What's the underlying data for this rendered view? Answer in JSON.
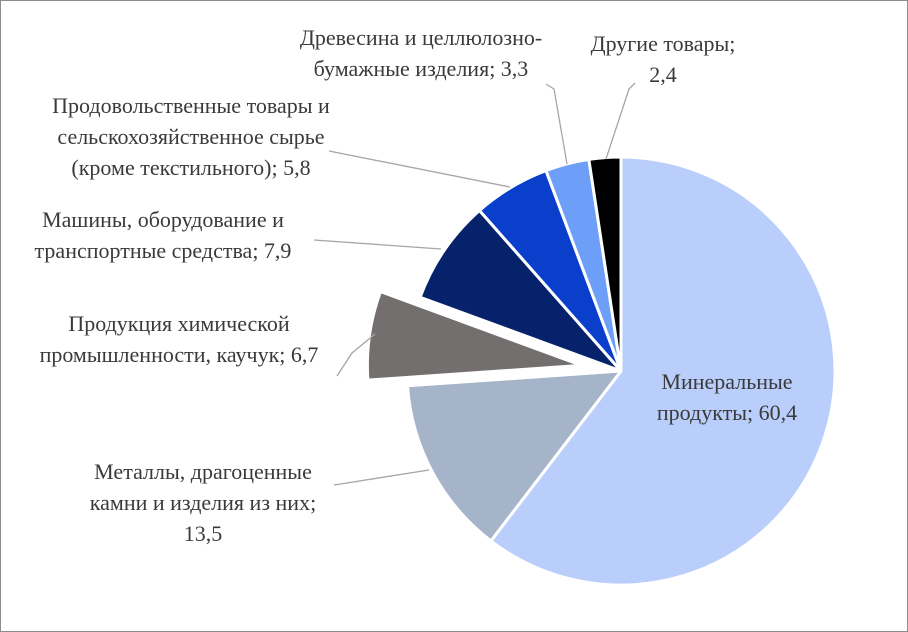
{
  "chart_data": {
    "type": "pie",
    "title": "",
    "exploded_slice": "Продукция химической промышленности, каучук",
    "slices": [
      {
        "name": "Минеральные продукты",
        "value": 60.4,
        "value_text": "60,4",
        "label_lines": [
          "Минеральные",
          "продукты; 60,4"
        ],
        "color": "#b9cefa",
        "label_inside": true
      },
      {
        "name": "Металлы, драгоценные камни и изделия из них",
        "value": 13.5,
        "value_text": "13,5",
        "label_lines": [
          "Металлы, драгоценные",
          "камни и изделия из них;",
          "13,5"
        ],
        "color": "#a6b4c9"
      },
      {
        "name": "Продукция химической промышленности, каучук",
        "value": 6.7,
        "value_text": "6,7",
        "label_lines": [
          "Продукция химической",
          "промышленности, каучук; 6,7"
        ],
        "color": "#746f6f"
      },
      {
        "name": "Машины, оборудование и транспортные средства",
        "value": 7.9,
        "value_text": "7,9",
        "label_lines": [
          "Машины, оборудование и",
          "транспортные средства; 7,9"
        ],
        "color": "#06226b"
      },
      {
        "name": "Продовольственные товары и сельскохозяйственное сырье (кроме текстильного)",
        "value": 5.8,
        "value_text": "5,8",
        "label_lines": [
          "Продовольственные товары и",
          "сельскохозяйственное сырье",
          "(кроме текстильного); 5,8"
        ],
        "color": "#0a3fcc"
      },
      {
        "name": "Древесина и целлюлозно-бумажные изделия",
        "value": 3.3,
        "value_text": "3,3",
        "label_lines": [
          "Древесина и целлюлозно-",
          "бумажные изделия; 3,3"
        ],
        "color": "#6d9ef8"
      },
      {
        "name": "Другие товары",
        "value": 2.4,
        "value_text": "2,4",
        "label_lines": [
          "Другие товары;",
          "2,4"
        ],
        "color": "#000000"
      }
    ]
  }
}
